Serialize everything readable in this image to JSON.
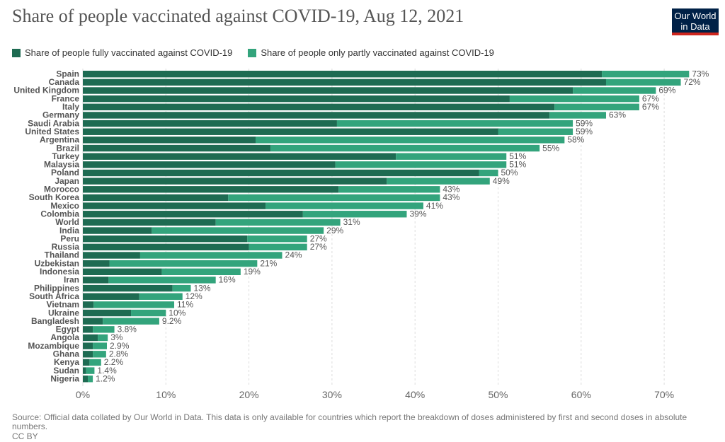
{
  "header": {
    "title": "Share of people vaccinated against COVID-19, Aug 12, 2021",
    "logo_line1": "Our World",
    "logo_line2": "in Data"
  },
  "footer": {
    "source": "Source: Official data collated by Our World in Data. This data is only available for countries which report the breakdown of doses administered by first and second doses in absolute numbers.",
    "license": "CC BY"
  },
  "colors": {
    "full": "#1e6b52",
    "partial": "#33a47c",
    "grid": "#dddddd",
    "label": "#555555"
  },
  "chart_data": {
    "type": "bar",
    "orientation": "horizontal",
    "stacked": true,
    "title": "Share of people vaccinated against COVID-19, Aug 12, 2021",
    "xlim": [
      0,
      73
    ],
    "x_ticks": [
      0,
      10,
      20,
      30,
      40,
      50,
      60,
      70
    ],
    "x_tick_labels": [
      "0%",
      "10%",
      "20%",
      "30%",
      "40%",
      "50%",
      "60%",
      "70%"
    ],
    "grid": "vertical dashed",
    "legend_position": "top-left",
    "categories": [
      "Spain",
      "Canada",
      "United Kingdom",
      "France",
      "Italy",
      "Germany",
      "Saudi Arabia",
      "United States",
      "Argentina",
      "Brazil",
      "Turkey",
      "Malaysia",
      "Poland",
      "Japan",
      "Morocco",
      "South Korea",
      "Mexico",
      "Colombia",
      "World",
      "India",
      "Peru",
      "Russia",
      "Thailand",
      "Uzbekistan",
      "Indonesia",
      "Iran",
      "Philippines",
      "South Africa",
      "Vietnam",
      "Ukraine",
      "Bangladesh",
      "Egypt",
      "Angola",
      "Mozambique",
      "Ghana",
      "Kenya",
      "Sudan",
      "Nigeria"
    ],
    "series": [
      {
        "name": "Share of people fully vaccinated against COVID-19",
        "values": [
          62.5,
          63,
          59,
          51.4,
          56.8,
          56.2,
          30.6,
          50,
          20.8,
          22.6,
          37.7,
          30.4,
          47.7,
          36.6,
          30.8,
          17.5,
          22,
          26.5,
          16,
          8.3,
          19.8,
          20,
          6.9,
          3.2,
          9.5,
          3.1,
          10.8,
          6.8,
          1.3,
          5.8,
          2.4,
          1.2,
          1.8,
          1.2,
          1.2,
          0.8,
          0.4,
          0.6
        ]
      },
      {
        "name": "Share of people only partly vaccinated against COVID-19",
        "values": [
          10.5,
          9,
          10,
          15.6,
          10.2,
          6.8,
          28.4,
          9,
          37.2,
          32.4,
          13.3,
          20.6,
          2.3,
          12.4,
          12.2,
          25.5,
          19,
          12.5,
          15,
          20.7,
          7.2,
          7,
          17.1,
          17.8,
          9.5,
          12.9,
          2.2,
          5.2,
          9.7,
          4.2,
          6.8,
          2.6,
          1.2,
          1.7,
          1.6,
          1.4,
          1,
          0.6
        ]
      }
    ],
    "total_labels": [
      "73%",
      "72%",
      "69%",
      "67%",
      "67%",
      "63%",
      "59%",
      "59%",
      "58%",
      "55%",
      "51%",
      "51%",
      "50%",
      "49%",
      "43%",
      "43%",
      "41%",
      "39%",
      "31%",
      "29%",
      "27%",
      "27%",
      "24%",
      "21%",
      "19%",
      "16%",
      "13%",
      "12%",
      "11%",
      "10%",
      "9.2%",
      "3.8%",
      "3%",
      "2.9%",
      "2.8%",
      "2.2%",
      "1.4%",
      "1.2%"
    ]
  }
}
